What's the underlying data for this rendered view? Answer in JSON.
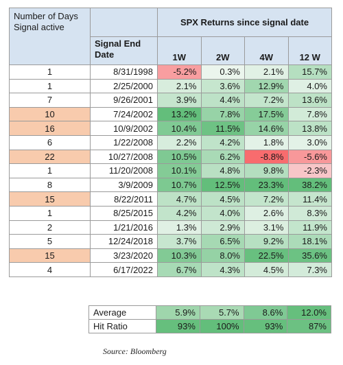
{
  "header": {
    "days_label": "Number of Days Signal active",
    "spx_title": "SPX Returns since signal date",
    "date_label": "Signal End Date",
    "periods": [
      "1W",
      "2W",
      "4W",
      "12 W"
    ]
  },
  "colors": {
    "header_blue": "#d6e3f1",
    "days_highlight": "#f8cbad",
    "positive_green": "#63be7b",
    "negative_red": "#f8696b"
  },
  "rows": [
    {
      "days": "1",
      "highlight": false,
      "date": "8/31/1998",
      "returns": [
        "-5.2%",
        "0.3%",
        "2.1%",
        "15.7%"
      ]
    },
    {
      "days": "1",
      "highlight": false,
      "date": "2/25/2000",
      "returns": [
        "2.1%",
        "3.6%",
        "12.9%",
        "4.0%"
      ]
    },
    {
      "days": "7",
      "highlight": false,
      "date": "9/26/2001",
      "returns": [
        "3.9%",
        "4.4%",
        "7.2%",
        "13.6%"
      ]
    },
    {
      "days": "10",
      "highlight": true,
      "date": "7/24/2002",
      "returns": [
        "13.2%",
        "7.8%",
        "17.5%",
        "7.8%"
      ]
    },
    {
      "days": "16",
      "highlight": true,
      "date": "10/9/2002",
      "returns": [
        "10.4%",
        "11.5%",
        "14.6%",
        "13.8%"
      ]
    },
    {
      "days": "6",
      "highlight": false,
      "date": "1/22/2008",
      "returns": [
        "2.2%",
        "4.2%",
        "1.8%",
        "3.0%"
      ]
    },
    {
      "days": "22",
      "highlight": true,
      "date": "10/27/2008",
      "returns": [
        "10.5%",
        "6.2%",
        "-8.8%",
        "-5.6%"
      ]
    },
    {
      "days": "1",
      "highlight": false,
      "date": "11/20/2008",
      "returns": [
        "10.1%",
        "4.8%",
        "9.8%",
        "-2.3%"
      ]
    },
    {
      "days": "8",
      "highlight": false,
      "date": "3/9/2009",
      "returns": [
        "10.7%",
        "12.5%",
        "23.3%",
        "38.2%"
      ]
    },
    {
      "days": "15",
      "highlight": true,
      "date": "8/22/2011",
      "returns": [
        "4.7%",
        "4.5%",
        "7.2%",
        "11.4%"
      ]
    },
    {
      "days": "1",
      "highlight": false,
      "date": "8/25/2015",
      "returns": [
        "4.2%",
        "4.0%",
        "2.6%",
        "8.3%"
      ]
    },
    {
      "days": "2",
      "highlight": false,
      "date": "1/21/2016",
      "returns": [
        "1.3%",
        "2.9%",
        "3.1%",
        "11.9%"
      ]
    },
    {
      "days": "5",
      "highlight": false,
      "date": "12/24/2018",
      "returns": [
        "3.7%",
        "6.5%",
        "9.2%",
        "18.1%"
      ]
    },
    {
      "days": "15",
      "highlight": true,
      "date": "3/23/2020",
      "returns": [
        "10.3%",
        "8.0%",
        "22.5%",
        "35.6%"
      ]
    },
    {
      "days": "4",
      "highlight": false,
      "date": "6/17/2022",
      "returns": [
        "6.7%",
        "4.3%",
        "4.5%",
        "7.3%"
      ]
    }
  ],
  "summary": [
    {
      "label": "Average",
      "values": [
        "5.9%",
        "5.7%",
        "8.6%",
        "12.0%"
      ]
    },
    {
      "label": "Hit Ratio",
      "values": [
        "93%",
        "100%",
        "93%",
        "87%"
      ]
    }
  ],
  "source": "Source: Bloomberg"
}
